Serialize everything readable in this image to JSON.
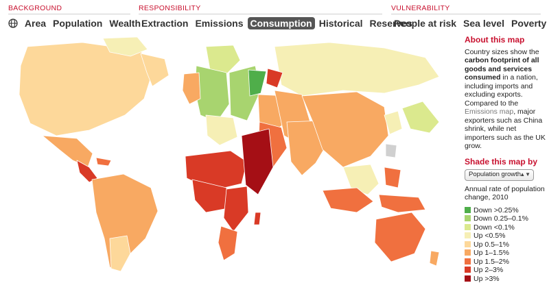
{
  "nav": {
    "background": {
      "label": "BACKGROUND",
      "tabs": [
        "Area",
        "Population",
        "Wealth"
      ]
    },
    "responsibility": {
      "label": "RESPONSIBILITY",
      "tabs": [
        "Extraction",
        "Emissions",
        "Consumption",
        "Historical",
        "Reserves"
      ],
      "active": "Consumption"
    },
    "vulnerability": {
      "label": "VULNERABILITY",
      "tabs": [
        "People at risk",
        "Sea level",
        "Poverty"
      ]
    }
  },
  "about": {
    "title": "About this map",
    "text_before": "Country sizes show the ",
    "text_bold": "carbon footprint of all goods and services consumed",
    "text_after": " in a nation, including imports and excluding exports. Compared to the ",
    "link": "Emissions map",
    "text_end": ", major exporters such as China shrink, while net importers such as the UK grow."
  },
  "shade": {
    "title": "Shade this map by",
    "select_value": "Population growth",
    "legend_title": "Annual rate of population change, 2010",
    "legend": [
      {
        "label": "Down >0.25%",
        "color": "#4fae4a"
      },
      {
        "label": "Down 0.25–0.1%",
        "color": "#a8d46f"
      },
      {
        "label": "Down <0.1%",
        "color": "#dbe98e"
      },
      {
        "label": "Up <0.5%",
        "color": "#f6efb5"
      },
      {
        "label": "Up 0.5–1%",
        "color": "#fdd89a"
      },
      {
        "label": "Up 1–1.5%",
        "color": "#f8a962"
      },
      {
        "label": "Up 1.5–2%",
        "color": "#f0703f"
      },
      {
        "label": "Up 2–3%",
        "color": "#d93a26"
      },
      {
        "label": "Up >3%",
        "color": "#a50f15"
      }
    ]
  }
}
